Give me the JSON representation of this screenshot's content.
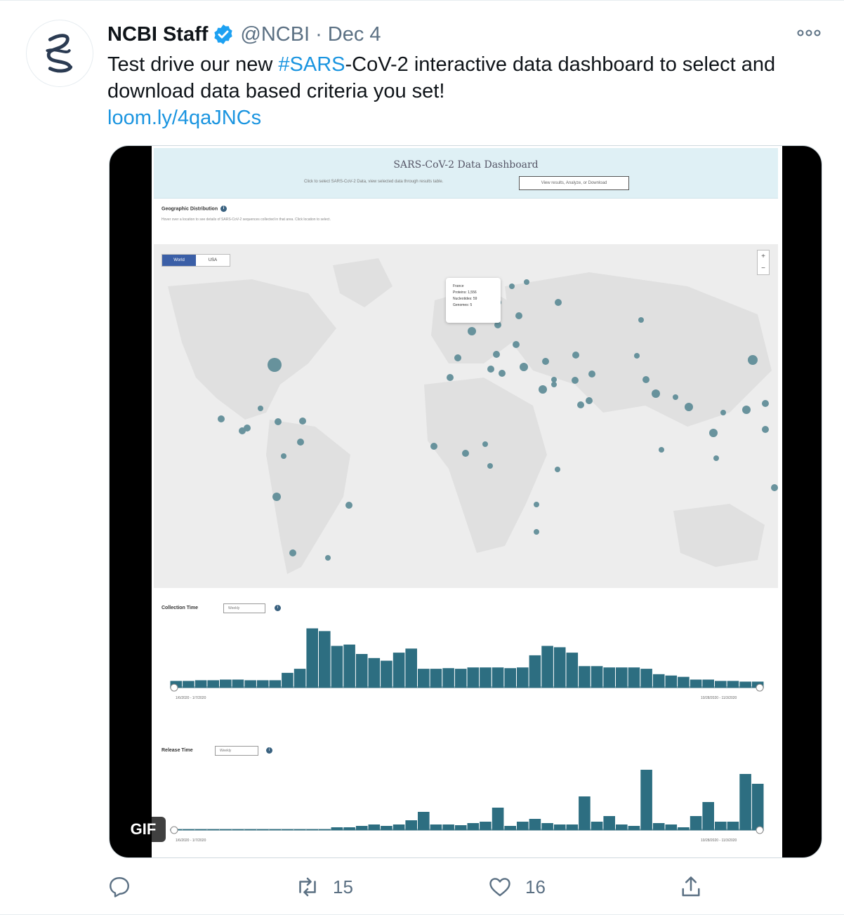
{
  "colors": {
    "link": "#1b95e0",
    "secondary": "#5b7083",
    "verified": "#1da1f2",
    "bars": "#2d6e81"
  },
  "author": {
    "name": "NCBI Staff",
    "handle": "@NCBI",
    "separator": "·",
    "date": "Dec 4",
    "verified_icon": "verified-badge-icon",
    "avatar_icon": "ncbi-helix-logo"
  },
  "tweet": {
    "text_before": "Test drive our new ",
    "hashtag": "#SARS",
    "text_after": "-CoV-2 interactive data dashboard to select and download data based criteria you set!",
    "link": "loom.ly/4qaJNCs"
  },
  "media": {
    "badge": "GIF",
    "dashboard": {
      "title": "SARS-CoV-2 Data Dashboard",
      "subtitle": "Click to select SARS-CoV-2 Data, view selected data through results table.",
      "button": "View results, Analyze, or Download",
      "geo_title": "Geographic Distribution",
      "geo_desc": "Hover over a location to see details of SARS-CoV-2 sequences collected in that area. Click location to select.",
      "map_tabs": [
        "World",
        "USA"
      ],
      "zoom_in": "+",
      "zoom_out": "−",
      "tooltip": {
        "title": "France",
        "line1": "Proteins: 1,556",
        "line2": "Nucleotides: 59",
        "line3": "Genomes: 5"
      },
      "collection": {
        "label": "Collection Time",
        "select": "Weekly",
        "start": "1/6/2020 - 1/7/2020",
        "end": "10/28/2020 - 11/3/2020"
      },
      "release": {
        "label": "Release Time",
        "select": "Weekly",
        "start": "1/6/2020 - 1/7/2020",
        "end": "10/28/2020 - 11/3/2020"
      }
    }
  },
  "chart_data": [
    {
      "type": "bar",
      "title": "Collection Time",
      "values": [
        10,
        10,
        11,
        11,
        12,
        12,
        11,
        11,
        11,
        22,
        28,
        88,
        84,
        62,
        64,
        50,
        44,
        40,
        52,
        58,
        28,
        28,
        29,
        28,
        30,
        30,
        30,
        29,
        30,
        48,
        62,
        60,
        52,
        32,
        32,
        30,
        30,
        30,
        28,
        20,
        18,
        16,
        12,
        12,
        10,
        10,
        9,
        9
      ],
      "ylim": [
        0,
        100
      ]
    },
    {
      "type": "bar",
      "title": "Release Time",
      "values": [
        0,
        0,
        0,
        0,
        0,
        0,
        0,
        0,
        0,
        0,
        0,
        0,
        1,
        4,
        4,
        6,
        8,
        6,
        8,
        14,
        26,
        8,
        8,
        7,
        10,
        12,
        32,
        6,
        12,
        16,
        10,
        8,
        8,
        48,
        12,
        20,
        8,
        6,
        86,
        10,
        8,
        4,
        20,
        40,
        12,
        12,
        80,
        66
      ],
      "ylim": [
        0,
        100
      ]
    }
  ],
  "actions": {
    "reply_icon": "reply-icon",
    "retweet_count": "15",
    "like_count": "16",
    "share_icon": "share-icon"
  }
}
